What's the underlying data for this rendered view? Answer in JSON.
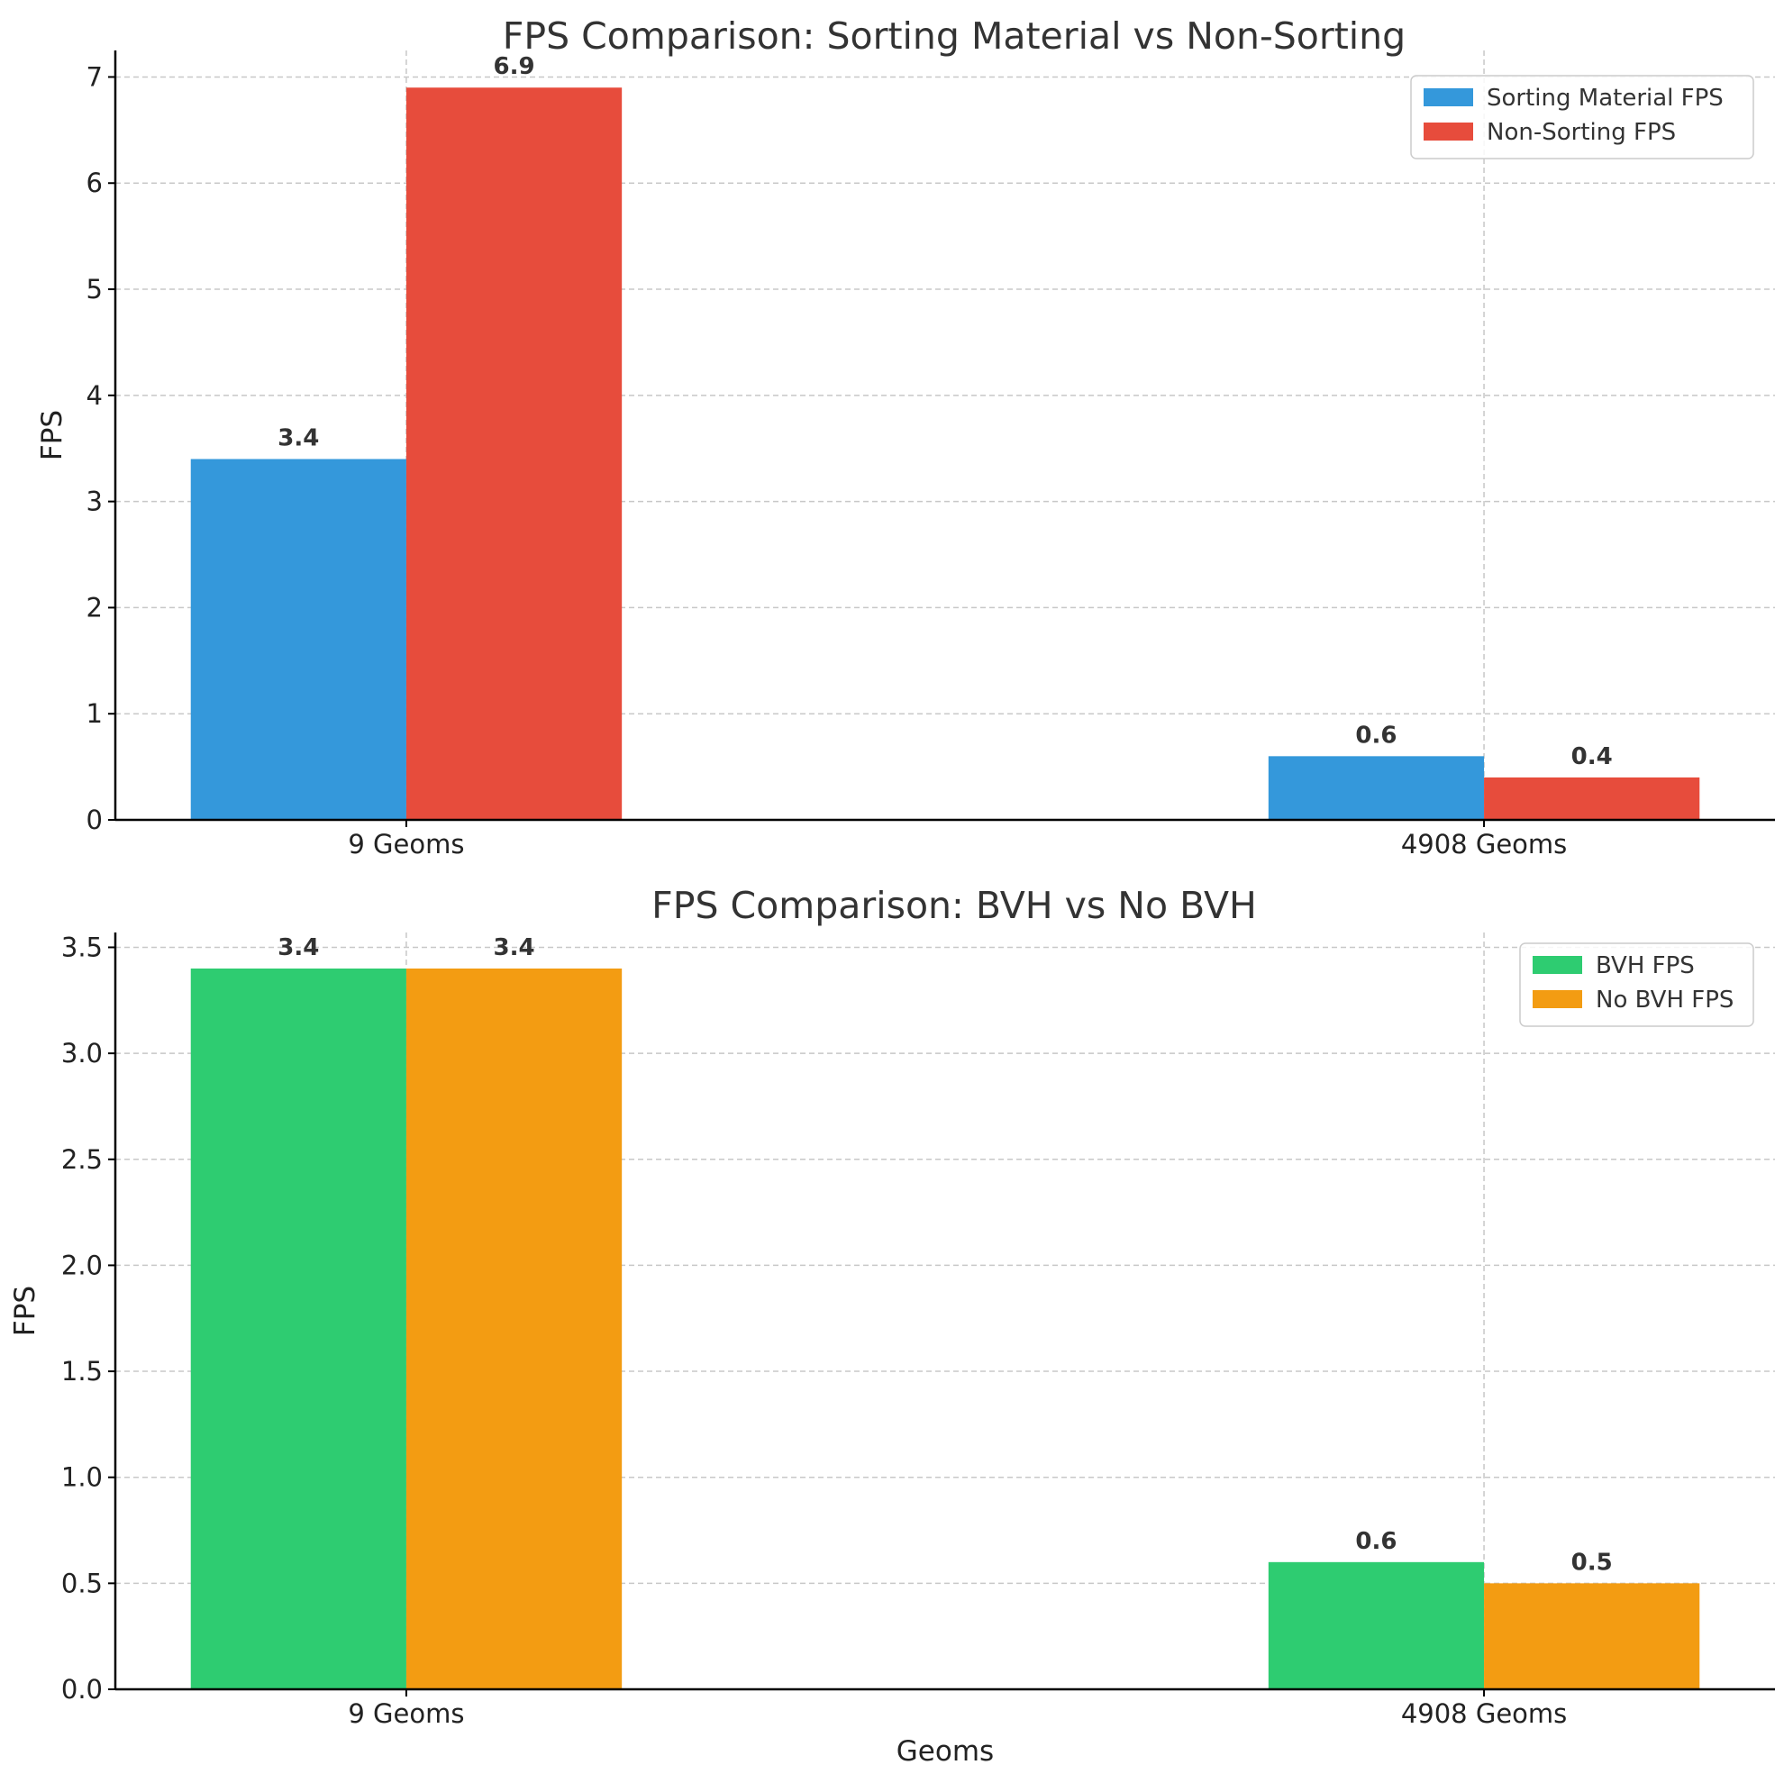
{
  "chart_data": [
    {
      "type": "bar",
      "title": "FPS Comparison: Sorting Material vs Non-Sorting",
      "xlabel": "",
      "ylabel": "FPS",
      "categories": [
        "9 Geoms",
        "4908 Geoms"
      ],
      "ylim": [
        0,
        7.25
      ],
      "yticks": [
        "0",
        "1",
        "2",
        "3",
        "4",
        "5",
        "6",
        "7"
      ],
      "ytick_values": [
        0,
        1,
        2,
        3,
        4,
        5,
        6,
        7
      ],
      "grid": true,
      "legend_position": "top-right",
      "series": [
        {
          "name": "Sorting Material FPS",
          "color": "#3498db",
          "values": [
            3.4,
            0.6
          ],
          "labels": [
            "3.4",
            "0.6"
          ]
        },
        {
          "name": "Non-Sorting FPS",
          "color": "#e74c3c",
          "values": [
            6.9,
            0.4
          ],
          "labels": [
            "6.9",
            "0.4"
          ]
        }
      ]
    },
    {
      "type": "bar",
      "title": "FPS Comparison: BVH vs No BVH",
      "xlabel": "Geoms",
      "ylabel": "FPS",
      "categories": [
        "9 Geoms",
        "4908 Geoms"
      ],
      "ylim": [
        0,
        3.57
      ],
      "yticks": [
        "0.0",
        "0.5",
        "1.0",
        "1.5",
        "2.0",
        "2.5",
        "3.0",
        "3.5"
      ],
      "ytick_values": [
        0,
        0.5,
        1.0,
        1.5,
        2.0,
        2.5,
        3.0,
        3.5
      ],
      "grid": true,
      "legend_position": "top-right",
      "series": [
        {
          "name": "BVH FPS",
          "color": "#2ecc71",
          "values": [
            3.4,
            0.6
          ],
          "labels": [
            "3.4",
            "0.6"
          ]
        },
        {
          "name": "No BVH FPS",
          "color": "#f39c12",
          "values": [
            3.4,
            0.5
          ],
          "labels": [
            "3.4",
            "0.5"
          ]
        }
      ]
    }
  ]
}
